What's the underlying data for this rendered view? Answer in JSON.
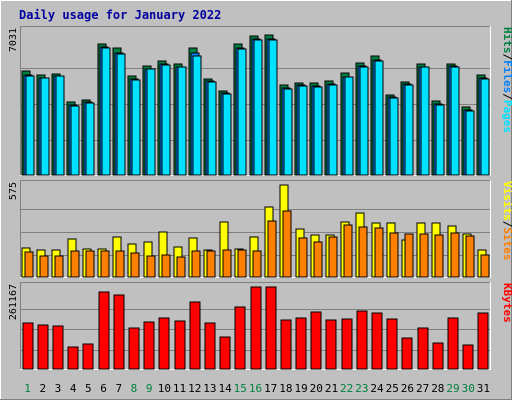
{
  "chart_data": {
    "type": "bar",
    "title": "Daily usage for January 2022",
    "colors": {
      "background": "#c0c0c0",
      "plot": "#c0c0c0",
      "hits": "#008040",
      "files": "#0080ff",
      "pages": "#00e0ff",
      "visits": "#ffff00",
      "sites": "#ff8000",
      "kbytes": "#ff0000",
      "title": "#0000a0",
      "weekend_day": "#008040",
      "weekday_day": "#000000"
    },
    "days": [
      "1",
      "2",
      "3",
      "4",
      "5",
      "6",
      "7",
      "8",
      "9",
      "10",
      "11",
      "12",
      "13",
      "14",
      "15",
      "16",
      "17",
      "18",
      "19",
      "20",
      "21",
      "22",
      "23",
      "24",
      "25",
      "26",
      "27",
      "28",
      "29",
      "30",
      "31"
    ],
    "weekend_days": [
      "1",
      "8",
      "9",
      "15",
      "16",
      "22",
      "23",
      "29",
      "30"
    ],
    "panels": [
      {
        "id": "hits-files-pages",
        "ymax_label": "7031",
        "ymax": 7031,
        "labels": [
          {
            "text": "Hits",
            "color": "#008040"
          },
          {
            "text": "/",
            "color": "#000000"
          },
          {
            "text": "Files",
            "color": "#0080ff"
          },
          {
            "text": "/",
            "color": "#000000"
          },
          {
            "text": "Pages",
            "color": "#00e0ff"
          }
        ],
        "series": [
          {
            "name": "Hits",
            "color": "#008040",
            "values": [
              5060,
              4900,
              4930,
              3580,
              3670,
              6420,
              6190,
              4810,
              5320,
              5590,
              5430,
              6180,
              4710,
              4110,
              6380,
              6810,
              6840,
              4400,
              4500,
              4480,
              4580,
              4960,
              5450,
              5790,
              3920,
              4560,
              5420,
              3620,
              5440,
              3300,
              4890
            ]
          },
          {
            "name": "Files",
            "color": "#0080ff",
            "values": [
              4880,
              4760,
              4850,
              3420,
              3550,
              6230,
              5980,
              4680,
              5190,
              5420,
              5290,
              5960,
              4590,
              3980,
              6190,
              6620,
              6630,
              4250,
              4380,
              4360,
              4430,
              4800,
              5310,
              5620,
              3810,
              4420,
              5290,
              3480,
              5300,
              3190,
              4760
            ]
          },
          {
            "name": "Pages",
            "color": "#00e0ff",
            "values": [
              4850,
              4730,
              4820,
              3380,
              3520,
              6200,
              5920,
              4650,
              5170,
              5380,
              5250,
              5790,
              4560,
              3950,
              6170,
              6600,
              6570,
              4200,
              4330,
              4320,
              4400,
              4780,
              5270,
              5580,
              3780,
              4400,
              5260,
              3440,
              5250,
              3130,
              4700
            ]
          }
        ]
      },
      {
        "id": "visits-sites",
        "ymax_label": "575",
        "ymax": 575,
        "labels": [
          {
            "text": "Visits",
            "color": "#ffff00"
          },
          {
            "text": "/",
            "color": "#000000"
          },
          {
            "text": "Sites",
            "color": "#ff8000"
          }
        ],
        "series": [
          {
            "name": "Visits",
            "color": "#ffff00",
            "values": [
              180,
              170,
              170,
              240,
              175,
              175,
              250,
              205,
              220,
              280,
              185,
              245,
              170,
              345,
              175,
              250,
              440,
              575,
              300,
              260,
              265,
              345,
              400,
              335,
              340,
              230,
              335,
              335,
              320,
              270,
              170
            ]
          },
          {
            "name": "Sites",
            "color": "#ff8000",
            "values": [
              155,
              130,
              130,
              165,
              160,
              160,
              165,
              150,
              130,
              135,
              125,
              165,
              160,
              170,
              170,
              160,
              350,
              415,
              245,
              220,
              250,
              325,
              315,
              305,
              275,
              270,
              270,
              265,
              275,
              255,
              135
            ]
          }
        ]
      },
      {
        "id": "kbytes",
        "ymax_label": "261167",
        "ymax": 261167,
        "labels": [
          {
            "text": "KBytes",
            "color": "#ff0000"
          }
        ],
        "series": [
          {
            "name": "KBytes",
            "color": "#ff0000",
            "values": [
              148000,
              141000,
              136000,
              70000,
              80000,
              244000,
              236000,
              132000,
              151000,
              162000,
              152000,
              212000,
              148000,
              102000,
              199000,
              261167,
              261167,
              155000,
              164000,
              182000,
              155000,
              159000,
              184000,
              178000,
              159000,
              100000,
              132000,
              83000,
              162000,
              78000,
              179000
            ]
          }
        ]
      }
    ]
  }
}
